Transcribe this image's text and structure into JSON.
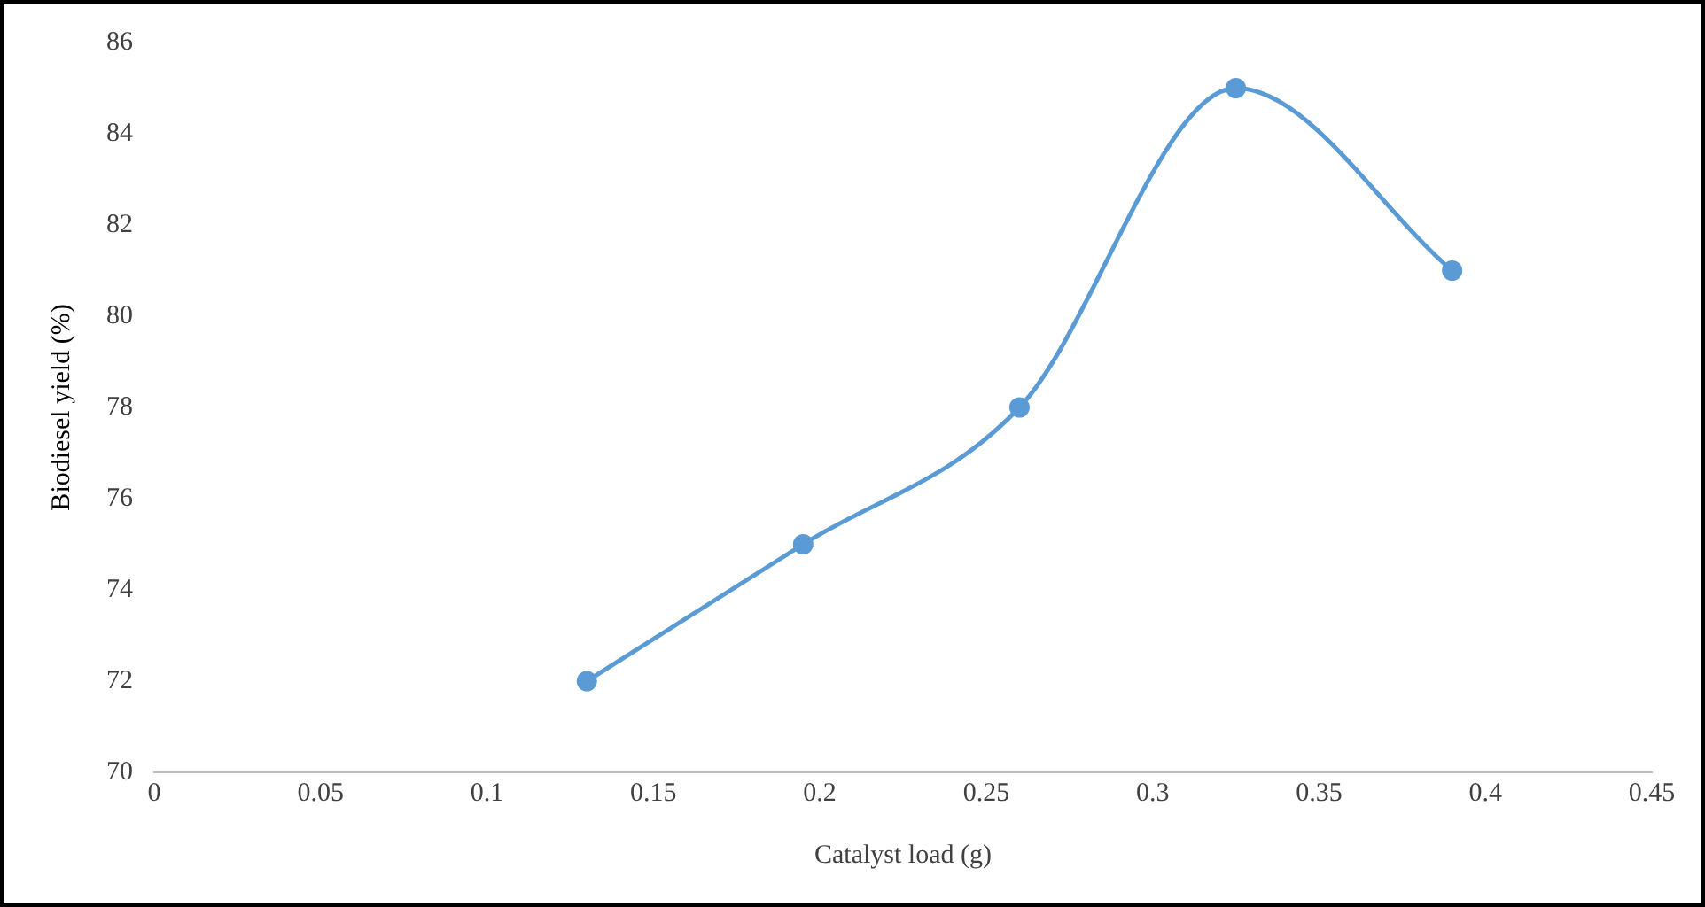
{
  "chart_data": {
    "type": "line",
    "xlabel": "Catalyst load (g)",
    "ylabel": "Biodiesel yield (%)",
    "x": [
      0.13,
      0.195,
      0.26,
      0.325,
      0.39
    ],
    "series": [
      {
        "color": "#5b9bd5",
        "values": [
          72,
          75,
          78,
          85,
          81
        ]
      }
    ],
    "xlim": [
      0,
      0.45
    ],
    "xticks": [
      0,
      0.05,
      0.1,
      0.15,
      0.2,
      0.25,
      0.3,
      0.35,
      0.4,
      0.45
    ],
    "ylim": [
      70,
      86
    ],
    "yticks": [
      70,
      72,
      74,
      76,
      78,
      80,
      82,
      84,
      86
    ],
    "grid": false,
    "legend": false,
    "marker": "circle",
    "line_style": "solid"
  }
}
